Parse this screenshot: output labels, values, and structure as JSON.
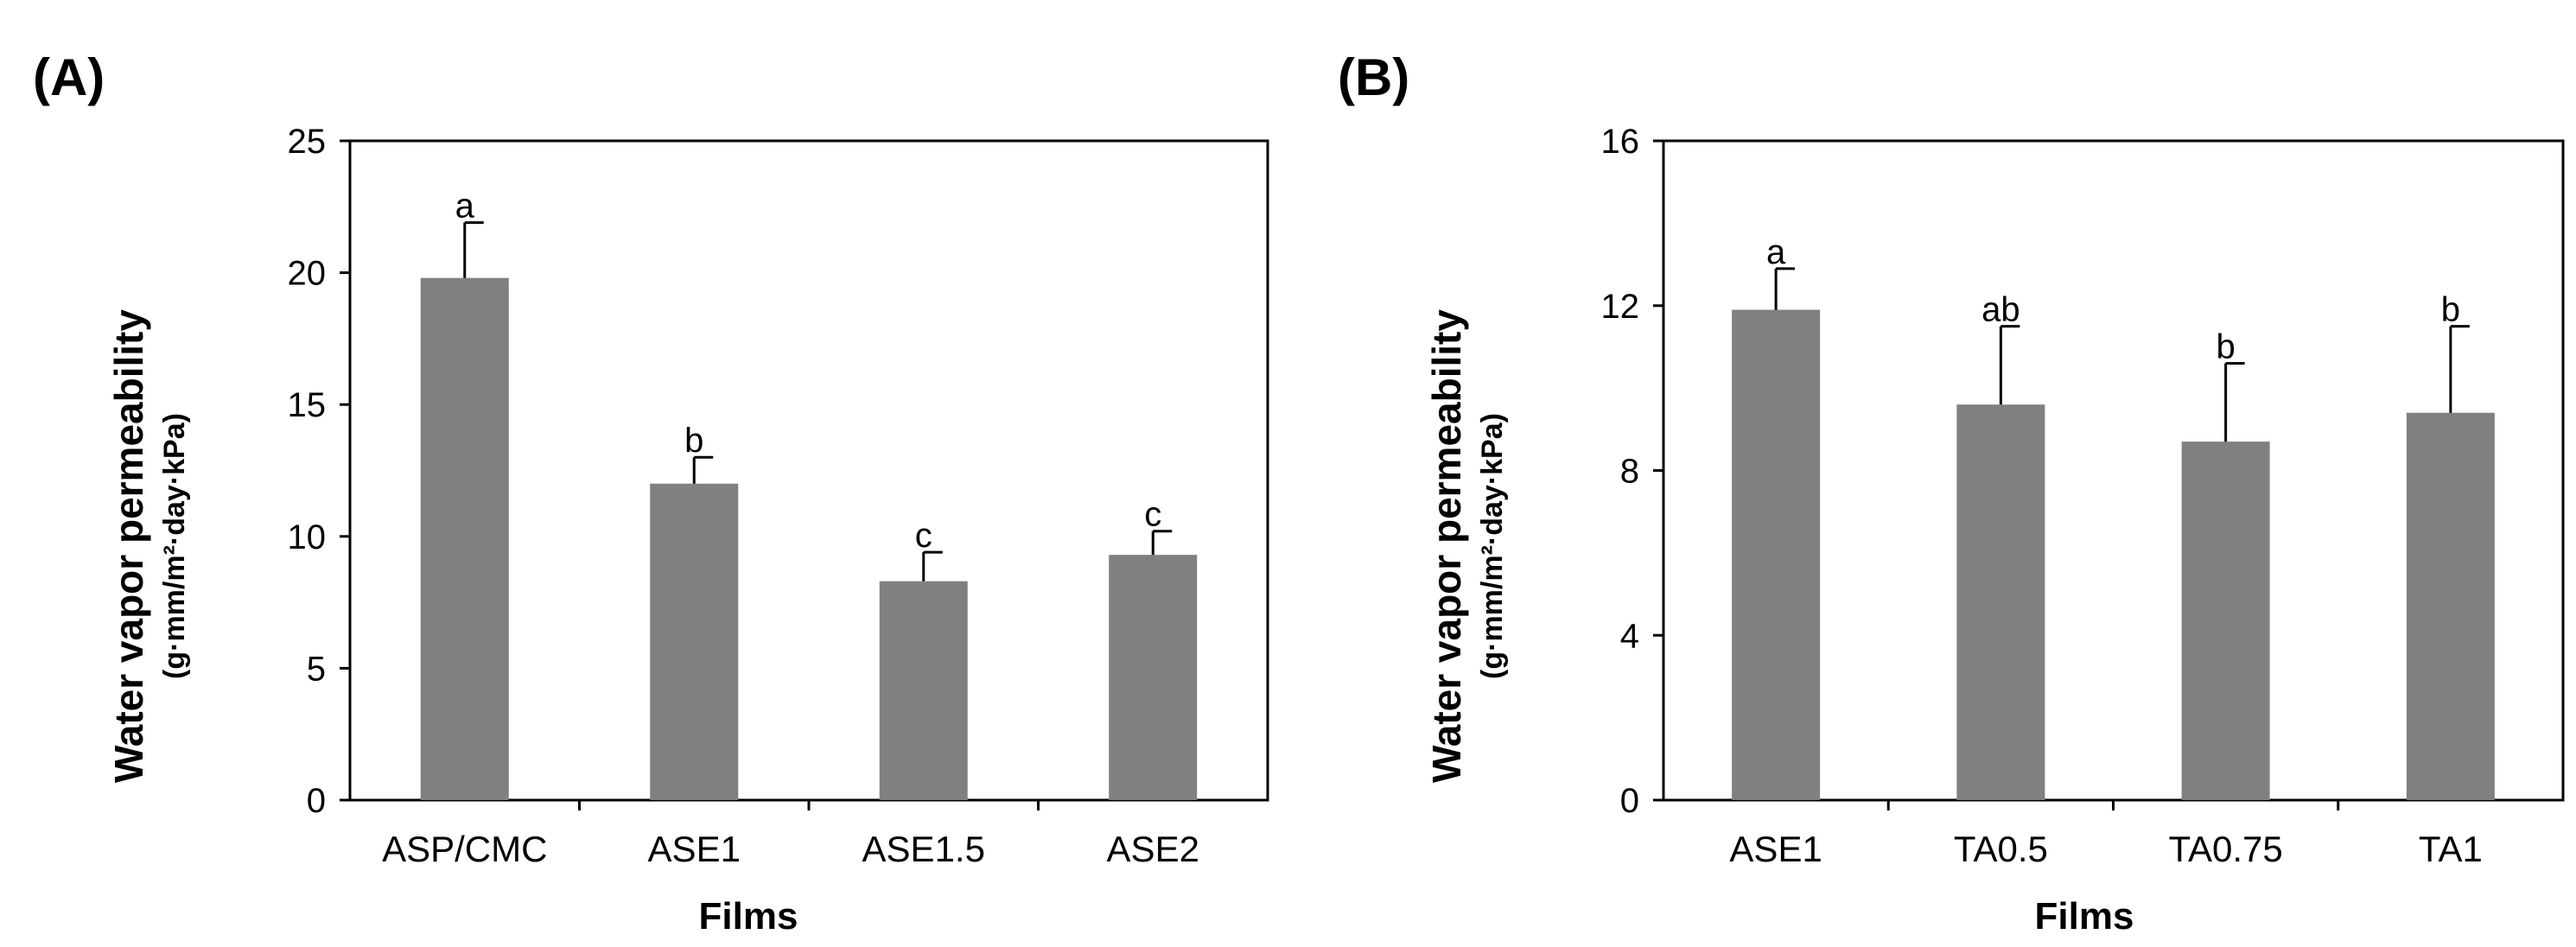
{
  "colors": {
    "bar": "#808080",
    "axis": "#000000"
  },
  "chart_data": [
    {
      "id": "A",
      "type": "bar",
      "panel_label": "(A)",
      "title": "",
      "xlabel": "Films",
      "ylabel": "Water vapor permeability",
      "ylabel_units": "(g·mm/m²·day·kPa)",
      "ylim": [
        0,
        25
      ],
      "yticks": [
        0,
        5,
        10,
        15,
        20,
        25
      ],
      "grid": false,
      "categories": [
        "ASP/CMC",
        "ASE1",
        "ASE1.5",
        "ASE2"
      ],
      "values": [
        19.8,
        12.0,
        8.3,
        9.3
      ],
      "errors": [
        2.1,
        1.0,
        1.1,
        0.9
      ],
      "significance": [
        "a",
        "b",
        "c",
        "c"
      ]
    },
    {
      "id": "B",
      "type": "bar",
      "panel_label": "(B)",
      "title": "",
      "xlabel": "Films",
      "ylabel": "Water vapor permeability",
      "ylabel_units": "(g·mm/m²·day·kPa)",
      "ylim": [
        0,
        16
      ],
      "yticks": [
        0,
        4,
        8,
        12,
        16
      ],
      "grid": false,
      "categories": [
        "ASE1",
        "TA0.5",
        "TA0.75",
        "TA1"
      ],
      "values": [
        11.9,
        9.6,
        8.7,
        9.4
      ],
      "errors": [
        1.0,
        1.9,
        1.9,
        2.1
      ],
      "significance": [
        "a",
        "ab",
        "b",
        "b"
      ]
    }
  ]
}
